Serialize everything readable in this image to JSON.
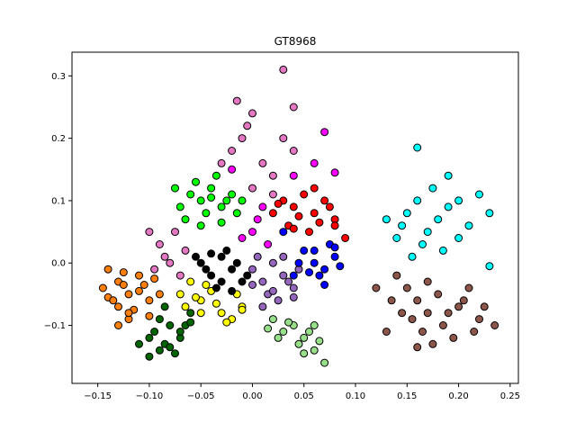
{
  "chart_data": {
    "type": "scatter",
    "title": "GT8968",
    "xlabel": "",
    "ylabel": "",
    "xlim": [
      -0.175,
      0.258
    ],
    "ylim": [
      -0.193,
      0.338
    ],
    "x_ticks": [
      -0.15,
      -0.1,
      -0.05,
      0.0,
      0.05,
      0.1,
      0.15,
      0.2,
      0.25
    ],
    "x_tick_labels": [
      "−0.15",
      "−0.10",
      "−0.05",
      "0.00",
      "0.05",
      "0.10",
      "0.15",
      "0.20",
      "0.25"
    ],
    "y_ticks": [
      -0.1,
      0.0,
      0.1,
      0.2,
      0.3
    ],
    "y_tick_labels": [
      "−0.1",
      "0.0",
      "0.1",
      "0.2",
      "0.3"
    ],
    "grid": false,
    "legend": "none",
    "marker_edge_color": "#000000",
    "series": [
      {
        "color": "#ff7f0e",
        "points": [
          [
            -0.145,
            -0.04
          ],
          [
            -0.14,
            -0.01
          ],
          [
            -0.13,
            -0.03
          ],
          [
            -0.12,
            -0.05
          ],
          [
            -0.11,
            -0.02
          ],
          [
            -0.13,
            -0.07
          ],
          [
            -0.12,
            -0.09
          ],
          [
            -0.1,
            -0.06
          ],
          [
            -0.14,
            -0.055
          ],
          [
            -0.115,
            -0.075
          ],
          [
            -0.105,
            -0.035
          ],
          [
            -0.125,
            -0.015
          ],
          [
            -0.09,
            -0.05
          ],
          [
            -0.13,
            -0.1
          ],
          [
            -0.12,
            -0.08
          ],
          [
            -0.135,
            -0.06
          ],
          [
            -0.11,
            -0.045
          ],
          [
            -0.1,
            -0.085
          ],
          [
            -0.095,
            -0.025
          ],
          [
            -0.125,
            -0.035
          ]
        ]
      },
      {
        "color": "#006400",
        "points": [
          [
            -0.1,
            -0.12
          ],
          [
            -0.09,
            -0.14
          ],
          [
            -0.08,
            -0.1
          ],
          [
            -0.07,
            -0.12
          ],
          [
            -0.085,
            -0.13
          ],
          [
            -0.06,
            -0.08
          ],
          [
            -0.095,
            -0.11
          ],
          [
            -0.075,
            -0.145
          ],
          [
            -0.11,
            -0.13
          ],
          [
            -0.065,
            -0.1
          ],
          [
            -0.09,
            -0.09
          ],
          [
            -0.08,
            -0.135
          ],
          [
            -0.1,
            -0.15
          ],
          [
            -0.07,
            -0.11
          ],
          [
            -0.085,
            -0.07
          ],
          [
            -0.06,
            -0.095
          ]
        ]
      },
      {
        "color": "#ffff00",
        "points": [
          [
            -0.07,
            -0.05
          ],
          [
            -0.05,
            -0.06
          ],
          [
            -0.03,
            -0.08
          ],
          [
            -0.01,
            -0.07
          ],
          [
            -0.06,
            -0.03
          ],
          [
            -0.04,
            -0.045
          ],
          [
            -0.02,
            -0.09
          ],
          [
            -0.05,
            -0.08
          ],
          [
            -0.035,
            -0.065
          ],
          [
            -0.015,
            -0.05
          ],
          [
            -0.065,
            -0.07
          ],
          [
            -0.025,
            -0.095
          ],
          [
            -0.045,
            -0.035
          ],
          [
            -0.055,
            -0.055
          ],
          [
            -0.01,
            -0.075
          ]
        ]
      },
      {
        "color": "#000000",
        "points": [
          [
            -0.05,
            0.0
          ],
          [
            -0.04,
            -0.02
          ],
          [
            -0.03,
            0.01
          ],
          [
            -0.02,
            -0.01
          ],
          [
            -0.01,
            -0.03
          ],
          [
            -0.035,
            -0.04
          ],
          [
            -0.025,
            0.02
          ],
          [
            -0.045,
            -0.01
          ],
          [
            -0.015,
            0.0
          ],
          [
            -0.005,
            -0.02
          ],
          [
            -0.03,
            -0.03
          ],
          [
            -0.055,
            0.01
          ],
          [
            -0.02,
            -0.045
          ],
          [
            -0.04,
            0.015
          ]
        ]
      },
      {
        "color": "#98df8a",
        "points": [
          [
            0.02,
            -0.09
          ],
          [
            0.03,
            -0.11
          ],
          [
            0.04,
            -0.1
          ],
          [
            0.05,
            -0.12
          ],
          [
            0.06,
            -0.14
          ],
          [
            0.025,
            -0.12
          ],
          [
            0.045,
            -0.13
          ],
          [
            0.055,
            -0.11
          ],
          [
            0.07,
            -0.16
          ],
          [
            0.035,
            -0.095
          ],
          [
            0.065,
            -0.125
          ],
          [
            0.015,
            -0.105
          ],
          [
            0.05,
            -0.145
          ],
          [
            0.06,
            -0.1
          ]
        ]
      },
      {
        "color": "#9467bd",
        "points": [
          [
            0.0,
            -0.01
          ],
          [
            0.01,
            -0.03
          ],
          [
            0.02,
            0.0
          ],
          [
            0.03,
            -0.02
          ],
          [
            0.04,
            -0.04
          ],
          [
            0.015,
            -0.05
          ],
          [
            0.025,
            -0.06
          ],
          [
            0.035,
            -0.03
          ],
          [
            0.005,
            0.01
          ],
          [
            0.045,
            -0.01
          ],
          [
            0.01,
            -0.07
          ],
          [
            0.03,
            0.01
          ],
          [
            0.02,
            -0.045
          ],
          [
            0.04,
            -0.055
          ],
          [
            0.0,
            -0.035
          ]
        ]
      },
      {
        "color": "#0000ff",
        "points": [
          [
            0.05,
            0.02
          ],
          [
            0.06,
            0.0
          ],
          [
            0.07,
            -0.01
          ],
          [
            0.08,
            0.01
          ],
          [
            0.04,
            -0.02
          ],
          [
            0.065,
            -0.02
          ],
          [
            0.055,
            -0.015
          ],
          [
            0.075,
            0.03
          ],
          [
            0.045,
            0.0
          ],
          [
            0.07,
            -0.035
          ],
          [
            0.085,
            -0.005
          ],
          [
            0.06,
            0.02
          ],
          [
            0.03,
            0.05
          ],
          [
            0.08,
            0.025
          ]
        ]
      },
      {
        "color": "#ff0000",
        "points": [
          [
            0.02,
            0.08
          ],
          [
            0.03,
            0.1
          ],
          [
            0.04,
            0.09
          ],
          [
            0.05,
            0.11
          ],
          [
            0.06,
            0.08
          ],
          [
            0.07,
            0.1
          ],
          [
            0.08,
            0.07
          ],
          [
            0.035,
            0.06
          ],
          [
            0.055,
            0.05
          ],
          [
            0.045,
            0.075
          ],
          [
            0.065,
            0.065
          ],
          [
            0.075,
            0.09
          ],
          [
            0.025,
            0.095
          ],
          [
            0.09,
            0.04
          ],
          [
            0.06,
            0.12
          ],
          [
            0.04,
            0.055
          ],
          [
            0.08,
            0.06
          ]
        ]
      },
      {
        "color": "#00ff00",
        "points": [
          [
            -0.07,
            0.09
          ],
          [
            -0.06,
            0.11
          ],
          [
            -0.05,
            0.1
          ],
          [
            -0.04,
            0.12
          ],
          [
            -0.03,
            0.09
          ],
          [
            -0.02,
            0.11
          ],
          [
            -0.055,
            0.13
          ],
          [
            -0.045,
            0.08
          ],
          [
            -0.035,
            0.14
          ],
          [
            -0.065,
            0.07
          ],
          [
            -0.025,
            0.1
          ],
          [
            -0.015,
            0.08
          ],
          [
            -0.05,
            0.06
          ],
          [
            -0.04,
            0.105
          ],
          [
            -0.075,
            0.12
          ],
          [
            -0.03,
            0.065
          ],
          [
            -0.01,
            0.1
          ]
        ]
      },
      {
        "color": "#ff00ff",
        "points": [
          [
            0.01,
            0.09
          ],
          [
            0.0,
            0.05
          ],
          [
            -0.02,
            0.15
          ],
          [
            0.04,
            0.14
          ],
          [
            0.07,
            0.21
          ],
          [
            0.06,
            0.16
          ],
          [
            0.08,
            0.145
          ],
          [
            0.005,
            0.07
          ],
          [
            -0.01,
            0.04
          ],
          [
            0.015,
            0.03
          ]
        ]
      },
      {
        "color": "#e377c2",
        "points": [
          [
            -0.1,
            0.05
          ],
          [
            -0.09,
            0.03
          ],
          [
            -0.08,
            0.0
          ],
          [
            -0.07,
            -0.02
          ],
          [
            -0.085,
            0.01
          ],
          [
            -0.075,
            0.05
          ],
          [
            -0.095,
            -0.01
          ],
          [
            -0.065,
            0.02
          ],
          [
            -0.01,
            0.2
          ],
          [
            0.0,
            0.24
          ],
          [
            -0.02,
            0.18
          ],
          [
            0.01,
            0.16
          ],
          [
            0.02,
            0.14
          ],
          [
            -0.005,
            0.22
          ],
          [
            0.03,
            0.2
          ],
          [
            -0.015,
            0.26
          ],
          [
            0.04,
            0.18
          ],
          [
            0.03,
            0.31
          ],
          [
            0.04,
            0.25
          ],
          [
            0.0,
            0.12
          ],
          [
            -0.03,
            0.16
          ],
          [
            0.02,
            0.11
          ]
        ]
      },
      {
        "color": "#00ffff",
        "points": [
          [
            0.13,
            0.07
          ],
          [
            0.15,
            0.08
          ],
          [
            0.16,
            0.1
          ],
          [
            0.17,
            0.05
          ],
          [
            0.18,
            0.07
          ],
          [
            0.19,
            0.09
          ],
          [
            0.2,
            0.04
          ],
          [
            0.14,
            0.04
          ],
          [
            0.165,
            0.03
          ],
          [
            0.185,
            0.02
          ],
          [
            0.21,
            0.06
          ],
          [
            0.22,
            0.11
          ],
          [
            0.23,
            0.08
          ],
          [
            0.16,
            0.185
          ],
          [
            0.19,
            0.14
          ],
          [
            0.175,
            0.12
          ],
          [
            0.155,
            0.01
          ],
          [
            0.2,
            0.1
          ],
          [
            0.23,
            -0.005
          ],
          [
            0.145,
            0.06
          ]
        ]
      },
      {
        "color": "#8c564b",
        "points": [
          [
            0.14,
            -0.02
          ],
          [
            0.15,
            -0.04
          ],
          [
            0.16,
            -0.06
          ],
          [
            0.17,
            -0.03
          ],
          [
            0.18,
            -0.05
          ],
          [
            0.19,
            -0.08
          ],
          [
            0.2,
            -0.07
          ],
          [
            0.21,
            -0.04
          ],
          [
            0.22,
            -0.09
          ],
          [
            0.155,
            -0.09
          ],
          [
            0.165,
            -0.11
          ],
          [
            0.175,
            -0.13
          ],
          [
            0.185,
            -0.1
          ],
          [
            0.195,
            -0.12
          ],
          [
            0.205,
            -0.06
          ],
          [
            0.215,
            -0.11
          ],
          [
            0.225,
            -0.07
          ],
          [
            0.135,
            -0.06
          ],
          [
            0.145,
            -0.08
          ],
          [
            0.17,
            -0.08
          ],
          [
            0.12,
            -0.04
          ],
          [
            0.235,
            -0.1
          ],
          [
            0.13,
            -0.11
          ],
          [
            0.16,
            -0.135
          ]
        ]
      }
    ]
  }
}
